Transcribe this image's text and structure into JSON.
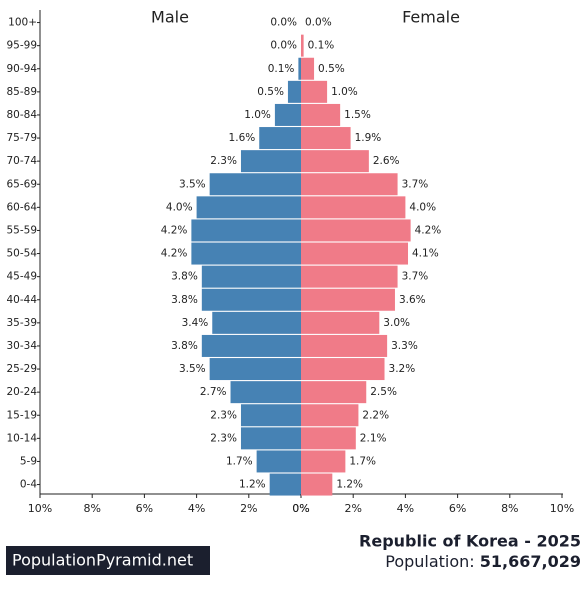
{
  "chart_data": {
    "type": "population_pyramid",
    "title": "Republic of Korea - 2025",
    "subtitle_label": "Population:",
    "population": "51,667,029",
    "source": "PopulationPyramid.net",
    "categories": [
      "100+",
      "95-99",
      "90-94",
      "85-89",
      "80-84",
      "75-79",
      "70-74",
      "65-69",
      "60-64",
      "55-59",
      "50-54",
      "45-49",
      "40-44",
      "35-39",
      "30-34",
      "25-29",
      "20-24",
      "15-19",
      "10-14",
      "5-9",
      "0-4"
    ],
    "series": [
      {
        "name": "Male",
        "color": "#4682b4",
        "side": "left",
        "values": [
          0.0,
          0.0,
          0.1,
          0.5,
          1.0,
          1.6,
          2.3,
          3.5,
          4.0,
          4.2,
          4.2,
          3.8,
          3.8,
          3.4,
          3.8,
          3.5,
          2.7,
          2.3,
          2.3,
          1.7,
          1.2
        ],
        "value_labels": [
          "0.0%",
          "0.0%",
          "0.1%",
          "0.5%",
          "1.0%",
          "1.6%",
          "2.3%",
          "3.5%",
          "4.0%",
          "4.2%",
          "4.2%",
          "3.8%",
          "3.8%",
          "3.4%",
          "3.8%",
          "3.5%",
          "2.7%",
          "2.3%",
          "2.3%",
          "1.7%",
          "1.2%"
        ],
        "xlim": [
          0,
          10
        ],
        "xticks": [
          {
            "value": 10,
            "label": "10%"
          },
          {
            "value": 8,
            "label": "8%"
          },
          {
            "value": 6,
            "label": "6%"
          },
          {
            "value": 4,
            "label": "4%"
          },
          {
            "value": 2,
            "label": "2%"
          },
          {
            "value": 0,
            "label": "0%"
          }
        ]
      },
      {
        "name": "Female",
        "color": "#f07b88",
        "side": "right",
        "values": [
          0.0,
          0.1,
          0.5,
          1.0,
          1.5,
          1.9,
          2.6,
          3.7,
          4.0,
          4.2,
          4.1,
          3.7,
          3.6,
          3.0,
          3.3,
          3.2,
          2.5,
          2.2,
          2.1,
          1.7,
          1.2
        ],
        "value_labels": [
          "0.0%",
          "0.1%",
          "0.5%",
          "1.0%",
          "1.5%",
          "1.9%",
          "2.6%",
          "3.7%",
          "4.0%",
          "4.2%",
          "4.1%",
          "3.7%",
          "3.6%",
          "3.0%",
          "3.3%",
          "3.2%",
          "2.5%",
          "2.2%",
          "2.1%",
          "1.7%",
          "1.2%"
        ],
        "xlim": [
          0,
          10
        ],
        "xticks": [
          {
            "value": 0,
            "label": "0%"
          },
          {
            "value": 2,
            "label": "2%"
          },
          {
            "value": 4,
            "label": "4%"
          },
          {
            "value": 6,
            "label": "6%"
          },
          {
            "value": 8,
            "label": "8%"
          },
          {
            "value": 10,
            "label": "10%"
          }
        ]
      }
    ]
  }
}
